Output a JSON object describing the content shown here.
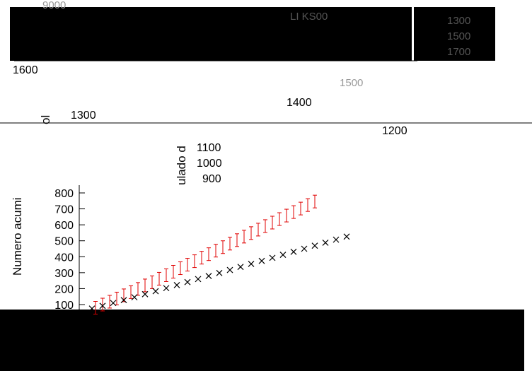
{
  "chart_data": {
    "type": "scatter",
    "ylabel": "Numero acumi",
    "ylim": [
      50,
      880
    ],
    "yticks": [
      100,
      200,
      300,
      400,
      500,
      600,
      700,
      800
    ],
    "y_tick_labels": [
      "100",
      "200",
      "300",
      "400",
      "500",
      "600",
      "700",
      "800"
    ],
    "series": [
      {
        "color": "#e00000",
        "marker": "errorbar",
        "x": [
          135,
          145,
          155,
          165,
          175,
          185,
          195,
          205,
          215,
          225,
          235,
          245,
          255,
          265,
          275,
          285,
          295,
          305,
          315,
          325,
          335,
          345,
          355,
          365,
          375,
          385,
          395,
          405,
          415,
          425,
          435,
          445
        ],
        "y": [
          80,
          100,
          118,
          138,
          158,
          178,
          198,
          220,
          240,
          262,
          284,
          306,
          328,
          350,
          372,
          394,
          416,
          438,
          460,
          482,
          504,
          526,
          548,
          570,
          592,
          614,
          636,
          658,
          680,
          702,
          724,
          746
        ]
      },
      {
        "color": "#000000",
        "marker": "x",
        "x": [
          130,
          145,
          160,
          175,
          190,
          205,
          220,
          235,
          250,
          265,
          280,
          295,
          310,
          325,
          340,
          355,
          370,
          385,
          400,
          415,
          430,
          445,
          460,
          475,
          490
        ],
        "y": [
          75,
          92,
          110,
          128,
          146,
          165,
          184,
          203,
          222,
          241,
          260,
          279,
          298,
          317,
          336,
          355,
          374,
          393,
          412,
          431,
          450,
          469,
          488,
          507,
          526
        ]
      }
    ],
    "overlay_text": [
      "9000",
      "1600",
      "1300",
      "1400",
      "1500",
      "1200",
      "1100",
      "1000",
      "900",
      "1300",
      "1500",
      "1700",
      "ulado d",
      "ol",
      "LI KS00"
    ]
  },
  "colors": {
    "red_series": "#e00000",
    "black_series": "#000000",
    "background": "#ffffff",
    "mask": "#000000"
  }
}
